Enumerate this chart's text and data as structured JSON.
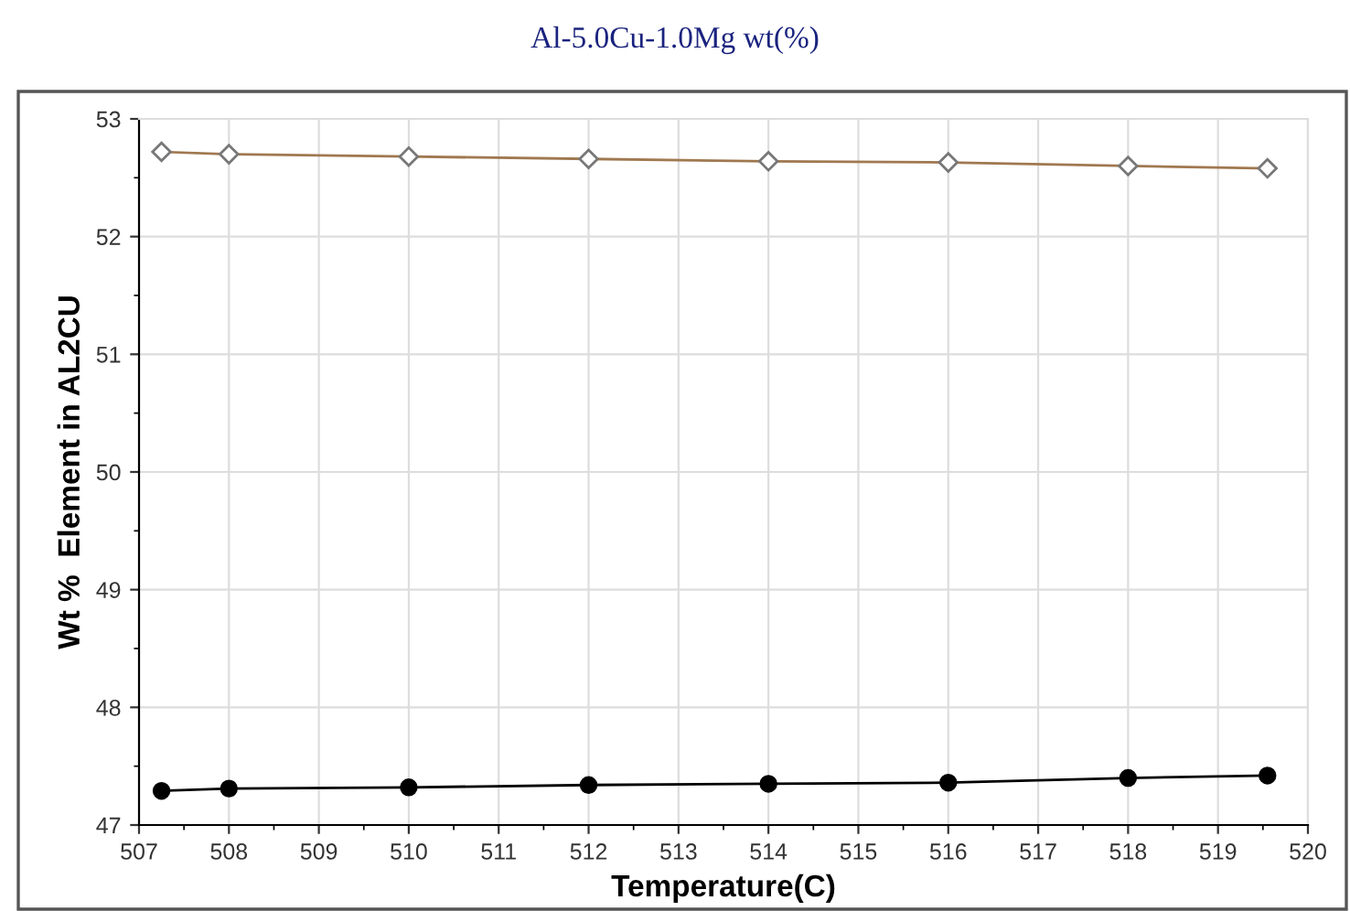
{
  "chart_data": {
    "type": "line",
    "title": "Al-5.0Cu-1.0Mg wt(%)",
    "xlabel": "Temperature(C)",
    "ylabel": "Wt %  Element in AL2CU",
    "x": [
      507.25,
      508,
      510,
      512,
      514,
      516,
      518,
      519.55
    ],
    "series": [
      {
        "color": "#a07850",
        "marker": "diamond",
        "values": [
          52.72,
          52.7,
          52.68,
          52.66,
          52.64,
          52.63,
          52.6,
          52.58
        ]
      },
      {
        "color": "#000000",
        "marker": "circle",
        "values": [
          47.29,
          47.31,
          47.32,
          47.34,
          47.35,
          47.36,
          47.4,
          47.42
        ]
      }
    ],
    "xlim": [
      507,
      520
    ],
    "xticks": [
      507,
      508,
      509,
      510,
      511,
      512,
      513,
      514,
      515,
      516,
      517,
      518,
      519,
      520
    ],
    "ylim": [
      47,
      53
    ],
    "yticks": [
      47,
      48,
      49,
      50,
      51,
      52,
      53
    ],
    "grid": true,
    "legend": false,
    "line_style": "solid"
  }
}
